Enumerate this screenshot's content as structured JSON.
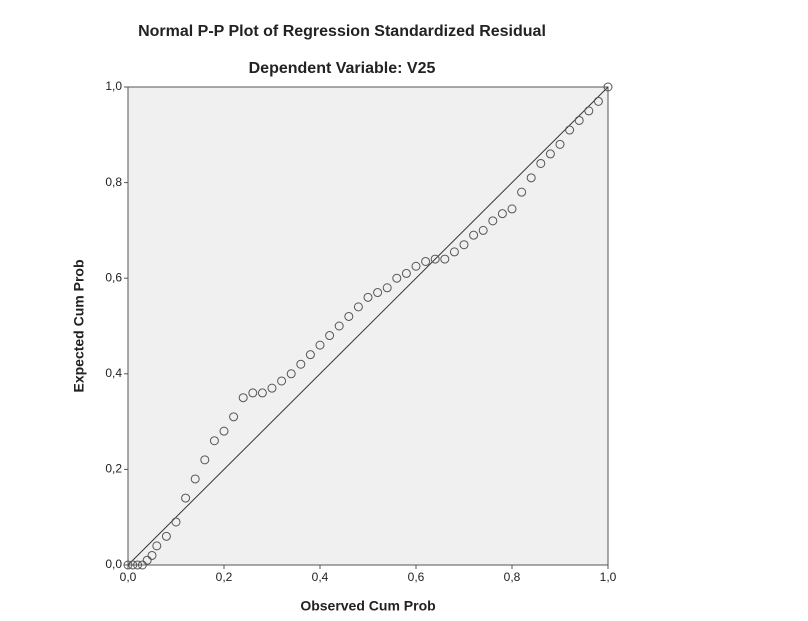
{
  "chart_data": {
    "type": "scatter",
    "title": "Normal P-P Plot of Regression Standardized Residual",
    "subtitle": "Dependent Variable: V25",
    "x_label": "Observed Cum Prob",
    "y_label": "Expected Cum Prob",
    "xlim": [
      0,
      1
    ],
    "ylim": [
      0,
      1
    ],
    "xticks": [
      {
        "value": 0,
        "label": "0,0"
      },
      {
        "value": 0.2,
        "label": "0,2"
      },
      {
        "value": 0.4,
        "label": "0,4"
      },
      {
        "value": 0.6,
        "label": "0,6"
      },
      {
        "value": 0.8,
        "label": "0,8"
      },
      {
        "value": 1,
        "label": "1,0"
      }
    ],
    "yticks": [
      {
        "value": 0,
        "label": "0,0"
      },
      {
        "value": 0.2,
        "label": "0,2"
      },
      {
        "value": 0.4,
        "label": "0,4"
      },
      {
        "value": 0.6,
        "label": "0,6"
      },
      {
        "value": 0.8,
        "label": "0,8"
      },
      {
        "value": 1,
        "label": "1,0"
      }
    ],
    "color": "#555555",
    "x": [
      0,
      0.01,
      0.02,
      0.03,
      0.04,
      0.05,
      0.06,
      0.08,
      0.1,
      0.12,
      0.14,
      0.16,
      0.18,
      0.2,
      0.22,
      0.24,
      0.26,
      0.28,
      0.3,
      0.32,
      0.34,
      0.36,
      0.38,
      0.4,
      0.42,
      0.44,
      0.46,
      0.48,
      0.5,
      0.52,
      0.54,
      0.56,
      0.58,
      0.6,
      0.62,
      0.64,
      0.66,
      0.68,
      0.7,
      0.72,
      0.74,
      0.76,
      0.78,
      0.8,
      0.82,
      0.84,
      0.86,
      0.88,
      0.9,
      0.92,
      0.94,
      0.96,
      0.98,
      1
    ],
    "y": [
      0,
      0,
      0,
      0,
      0.01,
      0.02,
      0.04,
      0.06,
      0.09,
      0.14,
      0.18,
      0.22,
      0.26,
      0.28,
      0.31,
      0.35,
      0.36,
      0.36,
      0.37,
      0.385,
      0.4,
      0.42,
      0.44,
      0.46,
      0.48,
      0.5,
      0.52,
      0.54,
      0.56,
      0.57,
      0.58,
      0.6,
      0.61,
      0.625,
      0.635,
      0.64,
      0.64,
      0.655,
      0.67,
      0.69,
      0.7,
      0.72,
      0.735,
      0.745,
      0.78,
      0.81,
      0.84,
      0.86,
      0.88,
      0.91,
      0.93,
      0.95,
      0.97,
      1
    ]
  }
}
